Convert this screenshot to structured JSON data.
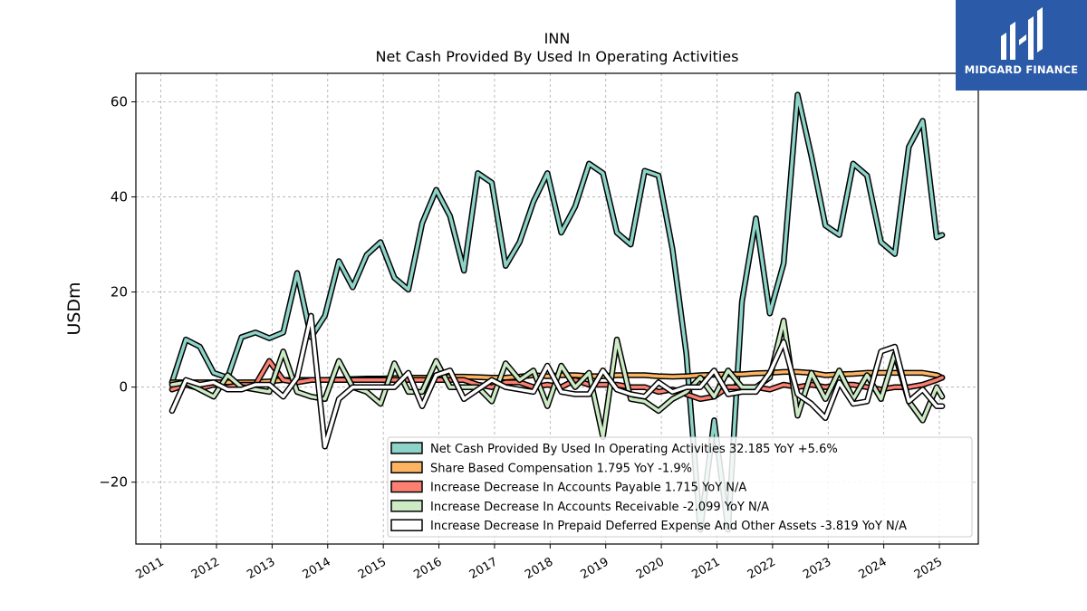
{
  "chart_data": {
    "type": "line",
    "title": "INN",
    "subtitle": "Net Cash Provided By Used In Operating Activities",
    "ylabel": "USDm",
    "xlabel": "",
    "ylim": [
      -33,
      66
    ],
    "xlim": [
      2010.55,
      2025.7
    ],
    "yticks": [
      -20,
      0,
      20,
      40,
      60
    ],
    "ytick_labels": [
      "−20",
      "0",
      "20",
      "40",
      "60"
    ],
    "xticks": [
      2011,
      2012,
      2013,
      2014,
      2015,
      2016,
      2017,
      2018,
      2019,
      2020,
      2021,
      2022,
      2023,
      2024,
      2025
    ],
    "xtick_labels": [
      "2011",
      "2012",
      "2013",
      "2014",
      "2015",
      "2016",
      "2017",
      "2018",
      "2019",
      "2020",
      "2021",
      "2022",
      "2023",
      "2024",
      "2025"
    ],
    "grid": true,
    "legend_position": "lower-right",
    "x": [
      2011.2,
      2011.45,
      2011.7,
      2011.95,
      2012.2,
      2012.45,
      2012.7,
      2012.95,
      2013.2,
      2013.45,
      2013.7,
      2013.95,
      2014.2,
      2014.45,
      2014.7,
      2014.95,
      2015.2,
      2015.45,
      2015.7,
      2015.95,
      2016.2,
      2016.45,
      2016.7,
      2016.95,
      2017.2,
      2017.45,
      2017.7,
      2017.95,
      2018.2,
      2018.45,
      2018.7,
      2018.95,
      2019.2,
      2019.45,
      2019.7,
      2019.95,
      2020.2,
      2020.45,
      2020.7,
      2020.95,
      2021.2,
      2021.45,
      2021.7,
      2021.95,
      2022.2,
      2022.45,
      2022.7,
      2022.95,
      2023.2,
      2023.45,
      2023.7,
      2023.95,
      2024.2,
      2024.45,
      2024.7,
      2024.95,
      2025.05
    ],
    "series": [
      {
        "name": "Net Cash Provided By Used In Operating Activities",
        "legend_value": "32.185 YoY +5.6%",
        "color": "#8dd3c7",
        "values": [
          1,
          10,
          8.5,
          3,
          2,
          10.5,
          11.5,
          10.3,
          11.5,
          24,
          10.5,
          15,
          26.5,
          21,
          27.8,
          30.5,
          23,
          20.5,
          34.5,
          41.5,
          36,
          24.5,
          45,
          43,
          25.5,
          30.5,
          39,
          45,
          32.5,
          38,
          47,
          45,
          32.5,
          30,
          45.5,
          44.5,
          29,
          7,
          -30,
          -7,
          -30,
          18,
          35.5,
          15.5,
          26,
          61.5,
          48.5,
          34,
          32,
          47,
          44.5,
          30.5,
          28,
          50.5,
          56,
          31.5,
          32
        ]
      },
      {
        "name": "Share Based Compensation",
        "legend_value": "1.795 YoY -1.9%",
        "color": "#fdb462",
        "values": [
          1,
          1,
          1,
          1,
          1,
          1,
          1,
          1.2,
          1.5,
          1.5,
          1.5,
          1.5,
          1.6,
          1.7,
          1.8,
          1.8,
          1.9,
          2,
          2,
          2,
          2.2,
          2.2,
          2.1,
          2,
          2,
          2.2,
          2.5,
          2.3,
          2.5,
          2.5,
          2.3,
          2.3,
          2.5,
          2.5,
          2.5,
          2.3,
          2.2,
          2.3,
          2.5,
          2.6,
          2.7,
          2.7,
          2.9,
          3,
          3.2,
          3.2,
          3,
          2.5,
          2.7,
          2.8,
          3,
          3,
          3,
          3,
          3,
          2.5,
          2
        ]
      },
      {
        "name": "Increase Decrease In Accounts Payable",
        "legend_value": "1.715 YoY N/A",
        "color": "#fb8072",
        "values": [
          -0.5,
          0.5,
          -0.3,
          0.5,
          0,
          0.5,
          0.5,
          5.5,
          1.5,
          1,
          1.5,
          1.5,
          1.5,
          1.5,
          1.5,
          1.5,
          1.5,
          1.5,
          1.5,
          1.5,
          1.5,
          1.5,
          0.5,
          0,
          1,
          1,
          0,
          0.5,
          0,
          1.5,
          0.5,
          0.5,
          0.5,
          0,
          0,
          -1,
          -0.5,
          -1.5,
          -2.5,
          -2,
          0,
          0,
          0,
          -0.5,
          0.5,
          0,
          0.5,
          0,
          0.5,
          0.5,
          0,
          -0.5,
          0,
          0,
          0.5,
          1.5,
          2
        ]
      },
      {
        "name": "Increase Decrease In Accounts Receivable",
        "legend_value": "-2.099 YoY N/A",
        "color": "#ccebc5",
        "values": [
          0.5,
          1,
          -0.5,
          -2,
          2.5,
          0,
          -0.5,
          -1,
          7.5,
          -1,
          -2,
          -2.5,
          5.5,
          0,
          -1,
          -3.5,
          5,
          -1,
          -1,
          5.5,
          0,
          0,
          0,
          -3,
          5,
          1.5,
          3.5,
          -4,
          4.5,
          0,
          3,
          -10.5,
          10,
          -2.5,
          -3,
          -5,
          -2.5,
          -1,
          2,
          -2,
          3.5,
          0,
          0,
          2,
          14,
          -6,
          3,
          -2.5,
          3.5,
          -2.5,
          2.5,
          -2.5,
          7,
          -3,
          -7,
          0,
          -2
        ]
      },
      {
        "name": "Increase Decrease In Prepaid Deferred Expense And Other Assets",
        "legend_value": "-3.819 YoY N/A",
        "color": "#ffffff",
        "values": [
          -5,
          1.5,
          0.5,
          1,
          -0.5,
          -0.5,
          0.5,
          0.5,
          -2,
          2,
          15,
          -12.5,
          -2.5,
          0,
          0,
          0,
          0,
          3,
          -4,
          2.5,
          3.5,
          -2.5,
          -0.5,
          1.5,
          0,
          -0.5,
          -1,
          4.5,
          -1,
          -1.5,
          -1.5,
          3.5,
          -0.5,
          -1.5,
          -2,
          1,
          -1,
          0,
          0,
          3.5,
          -1.5,
          -1,
          -1,
          3,
          9.5,
          -1.5,
          -3.5,
          -6.5,
          1,
          -3.5,
          -3,
          7.5,
          8.5,
          -3,
          -0.5,
          -4,
          -4
        ]
      }
    ]
  },
  "logo": {
    "text": "MIDGARD FINANCE"
  }
}
